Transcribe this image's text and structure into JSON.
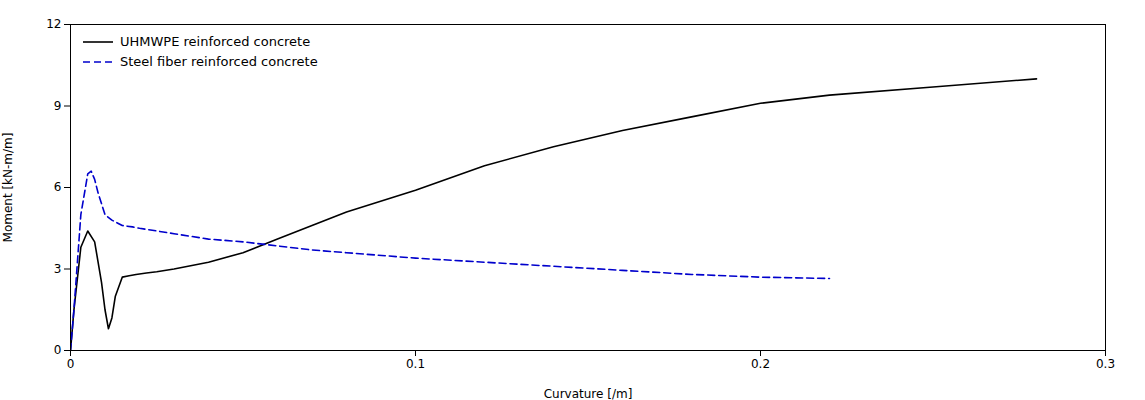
{
  "chart_data": {
    "type": "line",
    "xlabel": "Curvature [/m]",
    "ylabel": "Moment [kN-m/m]",
    "xlim": [
      0,
      0.3
    ],
    "ylim": [
      0,
      12
    ],
    "xticks": [
      0.0,
      0.1,
      0.2,
      0.3
    ],
    "yticks": [
      0,
      3,
      6,
      9,
      12
    ],
    "grid": false,
    "legend": "upper left",
    "series": [
      {
        "name": "UHMWPE reinforced concrete",
        "color": "#000000",
        "line_style": "solid",
        "x": [
          0,
          0.001,
          0.003,
          0.005,
          0.007,
          0.009,
          0.01,
          0.011,
          0.012,
          0.013,
          0.015,
          0.017,
          0.019,
          0.022,
          0.025,
          0.03,
          0.04,
          0.05,
          0.06,
          0.07,
          0.08,
          0.1,
          0.12,
          0.14,
          0.16,
          0.18,
          0.2,
          0.22,
          0.25,
          0.28
        ],
        "values": [
          0,
          1.5,
          3.8,
          4.4,
          4.0,
          2.5,
          1.5,
          0.8,
          1.2,
          2.0,
          2.7,
          2.75,
          2.8,
          2.85,
          2.9,
          3.0,
          3.25,
          3.6,
          4.1,
          4.6,
          5.1,
          5.9,
          6.8,
          7.5,
          8.1,
          8.6,
          9.1,
          9.4,
          9.7,
          10.0
        ]
      },
      {
        "name": "Steel fiber reinforced concrete",
        "color": "#0000cc",
        "line_style": "dashed",
        "x": [
          0,
          0.001,
          0.003,
          0.005,
          0.006,
          0.007,
          0.008,
          0.01,
          0.012,
          0.015,
          0.018,
          0.02,
          0.025,
          0.03,
          0.04,
          0.05,
          0.06,
          0.07,
          0.08,
          0.1,
          0.12,
          0.14,
          0.16,
          0.18,
          0.2,
          0.22
        ],
        "values": [
          0,
          1.5,
          5.0,
          6.5,
          6.6,
          6.3,
          5.8,
          5.0,
          4.8,
          4.6,
          4.55,
          4.5,
          4.4,
          4.3,
          4.1,
          4.0,
          3.85,
          3.7,
          3.6,
          3.4,
          3.25,
          3.1,
          2.95,
          2.8,
          2.7,
          2.65
        ]
      }
    ]
  }
}
